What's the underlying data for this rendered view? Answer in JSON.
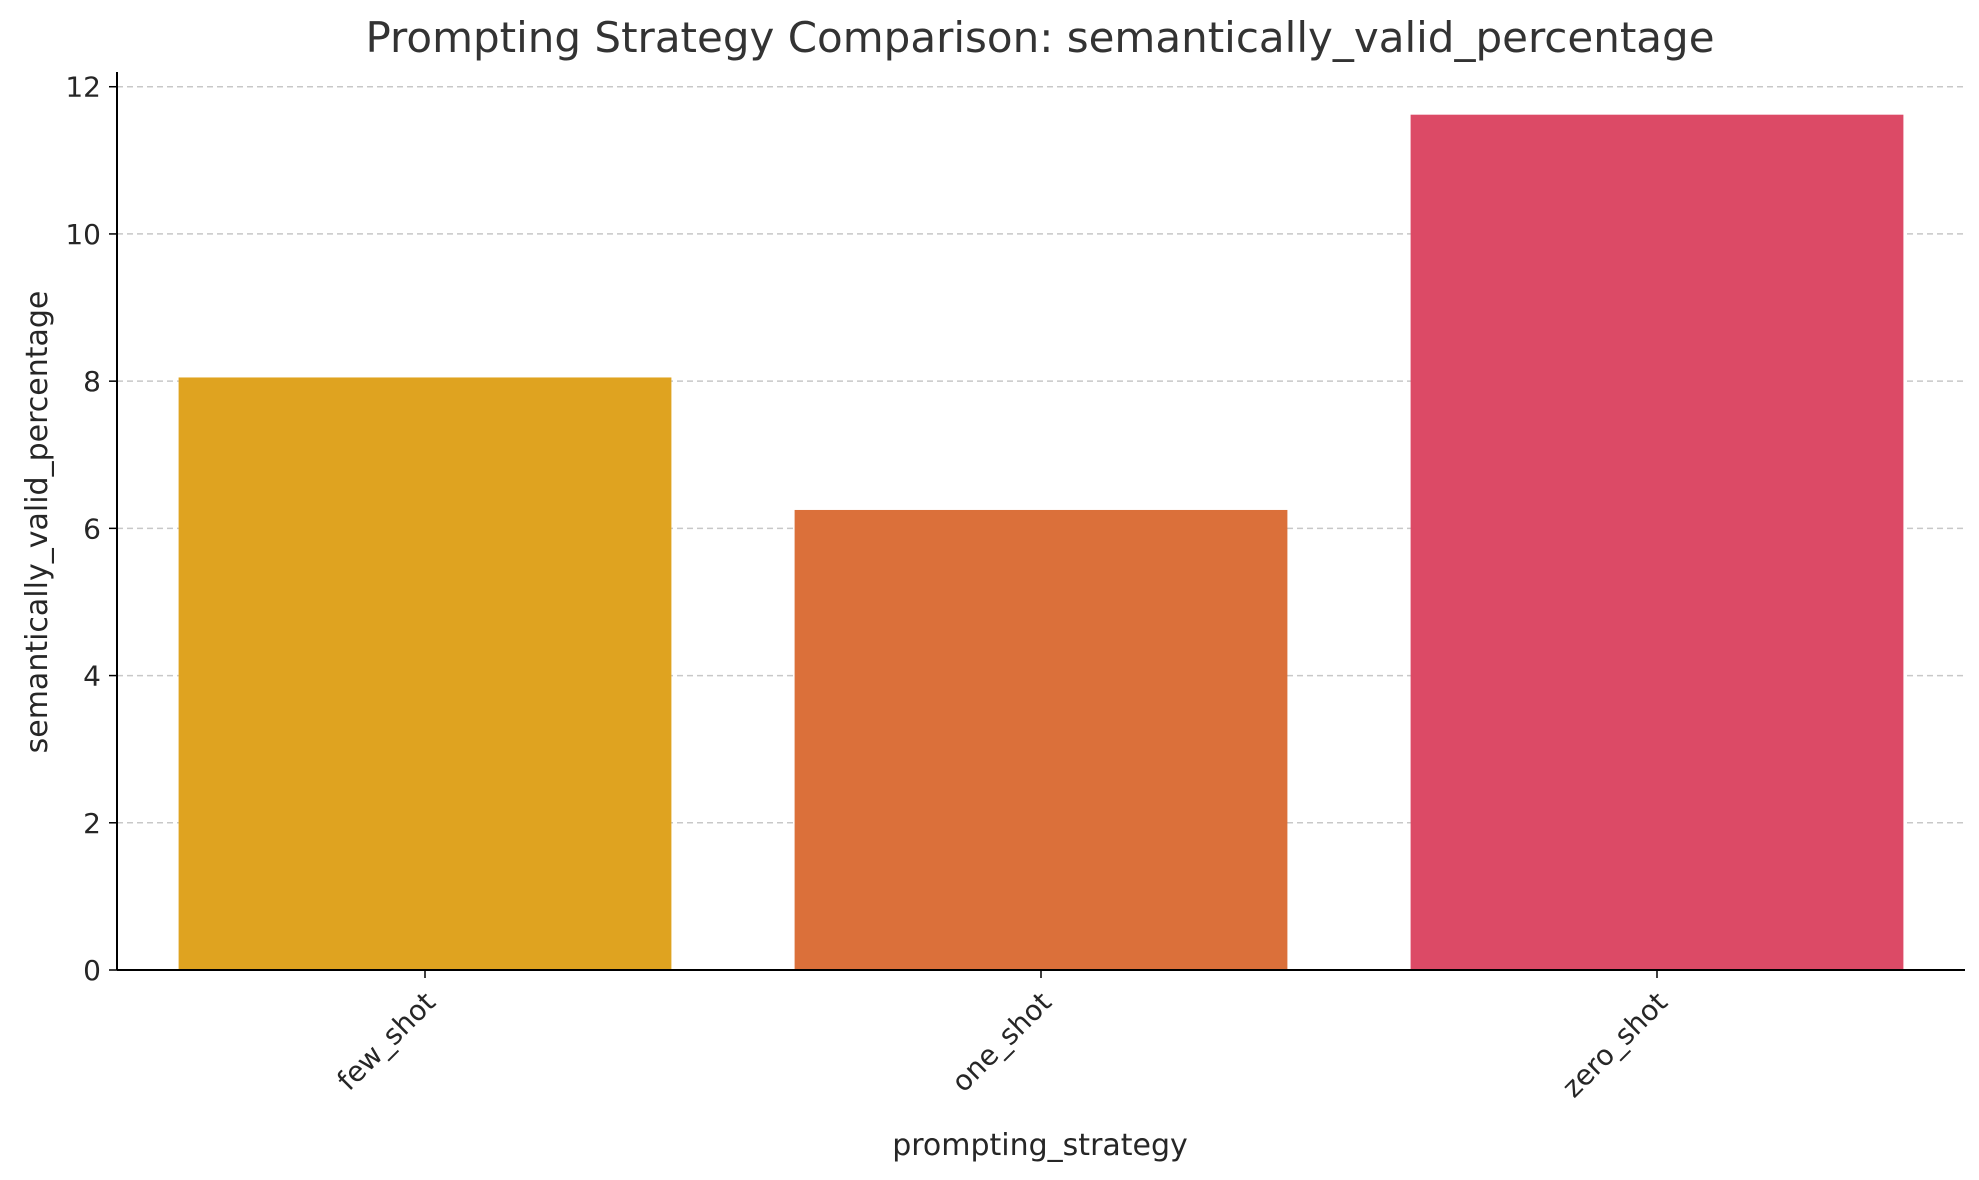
{
  "chart_data": {
    "type": "bar",
    "title": "Prompting Strategy Comparison: semantically_valid_percentage",
    "xlabel": "prompting_strategy",
    "ylabel": "semantically_valid_percentage",
    "categories": [
      "few_shot",
      "one_shot",
      "zero_shot"
    ],
    "values": [
      8.05,
      6.25,
      11.62
    ],
    "colors": [
      "#DFA320",
      "#DB703A",
      "#DC4A66"
    ],
    "ylim": [
      0,
      12.2
    ],
    "yticks": [
      0,
      2,
      4,
      6,
      8,
      10,
      12
    ],
    "xtick_rotation": 45,
    "grid": "y, dashed"
  }
}
